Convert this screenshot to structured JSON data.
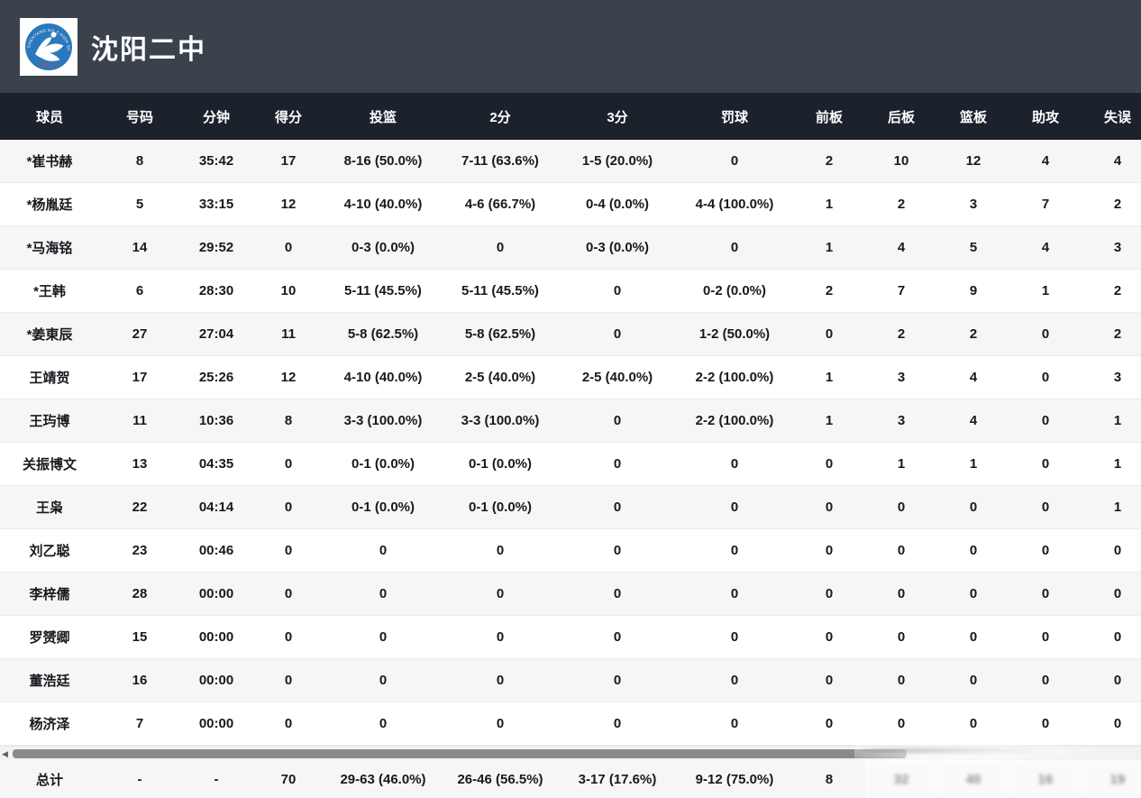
{
  "header": {
    "team_name": "沈阳二中",
    "logo_arc_text": "SHENYANG NO.2 HIGH SCHOOL",
    "logo_bottom_text": "沈阳二中",
    "logo_blue": "#2a78bd",
    "topbar_color": "#3a424c",
    "table_head_color": "#1b222b"
  },
  "columns": [
    "球员",
    "号码",
    "分钟",
    "得分",
    "投篮",
    "2分",
    "3分",
    "罚球",
    "前板",
    "后板",
    "篮板",
    "助攻",
    "失误"
  ],
  "players": [
    [
      "*崔书赫",
      "8",
      "35:42",
      "17",
      "8-16 (50.0%)",
      "7-11 (63.6%)",
      "1-5 (20.0%)",
      "0",
      "2",
      "10",
      "12",
      "4",
      "4"
    ],
    [
      "*杨胤廷",
      "5",
      "33:15",
      "12",
      "4-10 (40.0%)",
      "4-6 (66.7%)",
      "0-4 (0.0%)",
      "4-4 (100.0%)",
      "1",
      "2",
      "3",
      "7",
      "2"
    ],
    [
      "*马海铭",
      "14",
      "29:52",
      "0",
      "0-3 (0.0%)",
      "0",
      "0-3 (0.0%)",
      "0",
      "1",
      "4",
      "5",
      "4",
      "3"
    ],
    [
      "*王韩",
      "6",
      "28:30",
      "10",
      "5-11 (45.5%)",
      "5-11 (45.5%)",
      "0",
      "0-2 (0.0%)",
      "2",
      "7",
      "9",
      "1",
      "2"
    ],
    [
      "*姜東辰",
      "27",
      "27:04",
      "11",
      "5-8 (62.5%)",
      "5-8 (62.5%)",
      "0",
      "1-2 (50.0%)",
      "0",
      "2",
      "2",
      "0",
      "2"
    ],
    [
      "王靖贺",
      "17",
      "25:26",
      "12",
      "4-10 (40.0%)",
      "2-5 (40.0%)",
      "2-5 (40.0%)",
      "2-2 (100.0%)",
      "1",
      "3",
      "4",
      "0",
      "3"
    ],
    [
      "王玙博",
      "11",
      "10:36",
      "8",
      "3-3 (100.0%)",
      "3-3 (100.0%)",
      "0",
      "2-2 (100.0%)",
      "1",
      "3",
      "4",
      "0",
      "1"
    ],
    [
      "关振博文",
      "13",
      "04:35",
      "0",
      "0-1 (0.0%)",
      "0-1 (0.0%)",
      "0",
      "0",
      "0",
      "1",
      "1",
      "0",
      "1"
    ],
    [
      "王枭",
      "22",
      "04:14",
      "0",
      "0-1 (0.0%)",
      "0-1 (0.0%)",
      "0",
      "0",
      "0",
      "0",
      "0",
      "0",
      "1"
    ],
    [
      "刘乙聪",
      "23",
      "00:46",
      "0",
      "0",
      "0",
      "0",
      "0",
      "0",
      "0",
      "0",
      "0",
      "0"
    ],
    [
      "李梓儒",
      "28",
      "00:00",
      "0",
      "0",
      "0",
      "0",
      "0",
      "0",
      "0",
      "0",
      "0",
      "0"
    ],
    [
      "罗赟卿",
      "15",
      "00:00",
      "0",
      "0",
      "0",
      "0",
      "0",
      "0",
      "0",
      "0",
      "0",
      "0"
    ],
    [
      "董浩廷",
      "16",
      "00:00",
      "0",
      "0",
      "0",
      "0",
      "0",
      "0",
      "0",
      "0",
      "0",
      "0"
    ],
    [
      "杨济泽",
      "7",
      "00:00",
      "0",
      "0",
      "0",
      "0",
      "0",
      "0",
      "0",
      "0",
      "0",
      "0"
    ]
  ],
  "totals": [
    "总计",
    "-",
    "-",
    "70",
    "29-63 (46.0%)",
    "26-46 (56.5%)",
    "3-17 (17.6%)",
    "9-12 (75.0%)",
    "8",
    "32",
    "40",
    "16",
    "19"
  ],
  "totals_smudged_from_index": 9,
  "scrollbar": {
    "left_arrow": "◀"
  }
}
